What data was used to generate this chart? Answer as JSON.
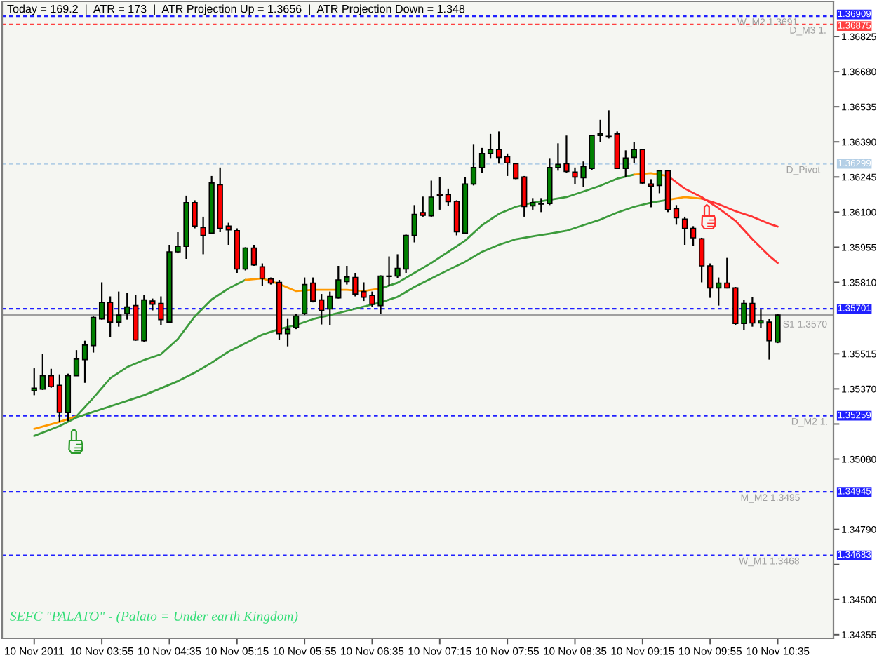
{
  "chart_data": {
    "type": "candlestick",
    "annotations": [
      "Today = 169.2  |  ATR = 173  |  ATR Projection Up = 1.3656  |  ATR Projection Down = 1.348",
      {
        "text": "W_M2 1.3691",
        "x": "2011-11-10T10:11",
        "y": 1.36909
      },
      {
        "text": "D_M3 1.",
        "x": "2011-11-10T10:42",
        "y": 1.36875
      },
      {
        "text": "D_Pivot",
        "x": "2011-11-10T10:40",
        "y": 1.36299
      },
      {
        "text": "S1 1.3570",
        "x": "2011-11-10T10:38",
        "y": 1.35701
      },
      {
        "text": "D_M2 1.",
        "x": "2011-11-10T10:43",
        "y": 1.35259
      },
      {
        "text": "M_M2 1.3495",
        "x": "2011-11-10T10:13",
        "y": 1.34945
      },
      {
        "text": "W_M1 1.3468",
        "x": "2011-11-10T10:12",
        "y": 1.34683
      },
      "SEFC \"PALATO\" - (Palato = Under earth Kingdom)"
    ],
    "x": [
      "2011-11-10T03:15",
      "2011-11-10T03:20",
      "2011-11-10T03:25",
      "2011-11-10T03:30",
      "2011-11-10T03:35",
      "2011-11-10T03:40",
      "2011-11-10T03:45",
      "2011-11-10T03:50",
      "2011-11-10T03:55",
      "2011-11-10T04:00",
      "2011-11-10T04:05",
      "2011-11-10T04:10",
      "2011-11-10T04:15",
      "2011-11-10T04:20",
      "2011-11-10T04:25",
      "2011-11-10T04:30",
      "2011-11-10T04:35",
      "2011-11-10T04:40",
      "2011-11-10T04:45",
      "2011-11-10T04:50",
      "2011-11-10T04:55",
      "2011-11-10T05:00",
      "2011-11-10T05:05",
      "2011-11-10T05:10",
      "2011-11-10T05:15",
      "2011-11-10T05:20",
      "2011-11-10T05:25",
      "2011-11-10T05:30",
      "2011-11-10T05:35",
      "2011-11-10T05:40",
      "2011-11-10T05:45",
      "2011-11-10T05:50",
      "2011-11-10T05:55",
      "2011-11-10T06:00",
      "2011-11-10T06:05",
      "2011-11-10T06:10",
      "2011-11-10T06:15",
      "2011-11-10T06:20",
      "2011-11-10T06:25",
      "2011-11-10T06:30",
      "2011-11-10T06:35",
      "2011-11-10T06:40",
      "2011-11-10T06:45",
      "2011-11-10T06:50",
      "2011-11-10T06:55",
      "2011-11-10T07:00",
      "2011-11-10T07:05",
      "2011-11-10T07:10",
      "2011-11-10T07:15",
      "2011-11-10T07:20",
      "2011-11-10T07:25",
      "2011-11-10T07:30",
      "2011-11-10T07:35",
      "2011-11-10T07:40",
      "2011-11-10T07:45",
      "2011-11-10T07:50",
      "2011-11-10T07:55",
      "2011-11-10T08:00",
      "2011-11-10T08:05",
      "2011-11-10T08:10",
      "2011-11-10T08:15",
      "2011-11-10T08:20",
      "2011-11-10T08:25",
      "2011-11-10T08:30",
      "2011-11-10T08:35",
      "2011-11-10T08:40",
      "2011-11-10T08:45",
      "2011-11-10T08:50",
      "2011-11-10T08:55",
      "2011-11-10T09:00",
      "2011-11-10T09:05",
      "2011-11-10T09:10",
      "2011-11-10T09:15",
      "2011-11-10T09:20",
      "2011-11-10T09:25",
      "2011-11-10T09:30",
      "2011-11-10T09:35",
      "2011-11-10T09:40",
      "2011-11-10T09:45",
      "2011-11-10T09:50",
      "2011-11-10T09:55",
      "2011-11-10T10:00",
      "2011-11-10T10:05",
      "2011-11-10T10:10",
      "2011-11-10T10:15",
      "2011-11-10T10:20",
      "2011-11-10T10:25",
      "2011-11-10T10:30",
      "2011-11-10T10:35"
    ],
    "ohlc": [
      [
        1.35362,
        1.35455,
        1.35344,
        1.35373
      ],
      [
        1.35369,
        1.35514,
        1.35366,
        1.35424
      ],
      [
        1.35424,
        1.35453,
        1.35375,
        1.35379
      ],
      [
        1.35385,
        1.3543,
        1.35234,
        1.35273
      ],
      [
        1.35272,
        1.35433,
        1.35237,
        1.35424
      ],
      [
        1.35424,
        1.3553,
        1.35424,
        1.35493
      ],
      [
        1.35491,
        1.35569,
        1.35395,
        1.35551
      ],
      [
        1.35549,
        1.35669,
        1.3552,
        1.35665
      ],
      [
        1.35659,
        1.3581,
        1.35656,
        1.35727
      ],
      [
        1.35727,
        1.35752,
        1.35584,
        1.35646
      ],
      [
        1.35646,
        1.35772,
        1.35627,
        1.35675
      ],
      [
        1.35681,
        1.35766,
        1.35656,
        1.35708
      ],
      [
        1.35714,
        1.35758,
        1.35569,
        1.35572
      ],
      [
        1.35569,
        1.35758,
        1.35565,
        1.35737
      ],
      [
        1.35733,
        1.35743,
        1.35694,
        1.3572
      ],
      [
        1.35723,
        1.35752,
        1.35633,
        1.35656
      ],
      [
        1.35646,
        1.35965,
        1.35642,
        1.35936
      ],
      [
        1.35936,
        1.36017,
        1.3593,
        1.35959
      ],
      [
        1.35959,
        1.36168,
        1.35907,
        1.36139
      ],
      [
        1.36139,
        1.36149,
        1.36033,
        1.36042
      ],
      [
        1.36036,
        1.36081,
        1.35926,
        1.36004
      ],
      [
        1.36013,
        1.36249,
        1.36011,
        1.3622
      ],
      [
        1.36213,
        1.36284,
        1.36017,
        1.36033
      ],
      [
        1.36042,
        1.36056,
        1.35965,
        1.36027
      ],
      [
        1.36023,
        1.36033,
        1.35849,
        1.35865
      ],
      [
        1.35865,
        1.35955,
        1.35859,
        1.35952
      ],
      [
        1.35952,
        1.35965,
        1.35878,
        1.35882
      ],
      [
        1.35874,
        1.35888,
        1.35797,
        1.35826
      ],
      [
        1.35824,
        1.3583,
        1.35801,
        1.35807
      ],
      [
        1.3581,
        1.3582,
        1.35572,
        1.35598
      ],
      [
        1.35598,
        1.35659,
        1.35546,
        1.35617
      ],
      [
        1.35623,
        1.35679,
        1.35617,
        1.35671
      ],
      [
        1.35681,
        1.3583,
        1.35675,
        1.35801
      ],
      [
        1.35807,
        1.3583,
        1.35727,
        1.35733
      ],
      [
        1.35737,
        1.35762,
        1.35636,
        1.35694
      ],
      [
        1.357,
        1.35772,
        1.35633,
        1.35752
      ],
      [
        1.35746,
        1.35878,
        1.35743,
        1.3582
      ],
      [
        1.35813,
        1.35878,
        1.35801,
        1.35832
      ],
      [
        1.3583,
        1.35849,
        1.35752,
        1.35762
      ],
      [
        1.35772,
        1.3581,
        1.35733,
        1.35749
      ],
      [
        1.35756,
        1.35772,
        1.3571,
        1.3572
      ],
      [
        1.35714,
        1.35839,
        1.35681,
        1.35836
      ],
      [
        1.35834,
        1.35917,
        1.35797,
        1.35836
      ],
      [
        1.35836,
        1.35926,
        1.35826,
        1.35868
      ],
      [
        1.35865,
        1.36007,
        1.35849,
        1.36004
      ],
      [
        1.36004,
        1.36129,
        1.35975,
        1.36091
      ],
      [
        1.36098,
        1.36164,
        1.36081,
        1.36087
      ],
      [
        1.36085,
        1.3623,
        1.36081,
        1.36162
      ],
      [
        1.36174,
        1.36245,
        1.3611,
        1.36168
      ],
      [
        1.36172,
        1.36197,
        1.36126,
        1.36143
      ],
      [
        1.36145,
        1.36149,
        1.36004,
        1.36019
      ],
      [
        1.36013,
        1.36245,
        1.3601,
        1.36216
      ],
      [
        1.36216,
        1.36381,
        1.3621,
        1.36284
      ],
      [
        1.36284,
        1.36365,
        1.36261,
        1.36342
      ],
      [
        1.36342,
        1.36423,
        1.36323,
        1.36358
      ],
      [
        1.36358,
        1.36433,
        1.363,
        1.36326
      ],
      [
        1.36329,
        1.36342,
        1.36249,
        1.36303
      ],
      [
        1.363,
        1.36303,
        1.36236,
        1.36239
      ],
      [
        1.36245,
        1.36249,
        1.36081,
        1.36123
      ],
      [
        1.36126,
        1.36158,
        1.3611,
        1.36139
      ],
      [
        1.36133,
        1.36158,
        1.361,
        1.36135
      ],
      [
        1.36135,
        1.36323,
        1.36129,
        1.36284
      ],
      [
        1.36284,
        1.36384,
        1.36271,
        1.36297
      ],
      [
        1.363,
        1.36416,
        1.36261,
        1.36268
      ],
      [
        1.36265,
        1.36284,
        1.36216,
        1.36245
      ],
      [
        1.36242,
        1.36309,
        1.36203,
        1.36288
      ],
      [
        1.3628,
        1.36419,
        1.36274,
        1.36416
      ],
      [
        1.36416,
        1.36481,
        1.3639,
        1.36423
      ],
      [
        1.3641,
        1.3652,
        1.36404,
        1.36413
      ],
      [
        1.36423,
        1.36433,
        1.36278,
        1.3628
      ],
      [
        1.3628,
        1.36355,
        1.36245,
        1.36323
      ],
      [
        1.36326,
        1.3639,
        1.36303,
        1.36358
      ],
      [
        1.36358,
        1.36361,
        1.36216,
        1.3622
      ],
      [
        1.36216,
        1.36236,
        1.3612,
        1.36207
      ],
      [
        1.3621,
        1.36274,
        1.36178,
        1.36271
      ],
      [
        1.36271,
        1.36274,
        1.361,
        1.3611
      ],
      [
        1.36114,
        1.36129,
        1.36048,
        1.36077
      ],
      [
        1.36071,
        1.36081,
        1.35965,
        1.36033
      ],
      [
        1.36033,
        1.36042,
        1.35961,
        1.35994
      ],
      [
        1.3599,
        1.35994,
        1.3581,
        1.35878
      ],
      [
        1.35878,
        1.35888,
        1.35746,
        1.35787
      ],
      [
        1.35787,
        1.3583,
        1.35714,
        1.35807
      ],
      [
        1.35807,
        1.35911,
        1.35785,
        1.35787
      ],
      [
        1.35787,
        1.35791,
        1.35633,
        1.3564
      ],
      [
        1.3564,
        1.35737,
        1.35613,
        1.35723
      ],
      [
        1.35723,
        1.35749,
        1.35627,
        1.35642
      ],
      [
        1.35642,
        1.35698,
        1.35621,
        1.35652
      ],
      [
        1.35646,
        1.35658,
        1.35491,
        1.35569
      ],
      [
        1.35563,
        1.35679,
        1.35559,
        1.35675
      ]
    ],
    "colors": [
      "#008000",
      "#008000",
      "#ff0000",
      "#ff0000",
      "#008000",
      "#008000",
      "#008000",
      "#008000",
      "#008000",
      "#ff0000",
      "#008000",
      "#008000",
      "#ff0000",
      "#008000",
      "#ff0000",
      "#ff0000",
      "#008000",
      "#008000",
      "#008000",
      "#ff0000",
      "#ff0000",
      "#008000",
      "#ff0000",
      "#ff0000",
      "#ff0000",
      "#008000",
      "#ff0000",
      "#ff0000",
      "#ff0000",
      "#ff0000",
      "#008000",
      "#008000",
      "#008000",
      "#ff0000",
      "#ff0000",
      "#008000",
      "#008000",
      "#008000",
      "#ff0000",
      "#ff0000",
      "#ff0000",
      "#008000",
      "#008000",
      "#008000",
      "#008000",
      "#008000",
      "#ff0000",
      "#008000",
      "#ff0000",
      "#ff0000",
      "#ff0000",
      "#008000",
      "#008000",
      "#008000",
      "#008000",
      "#ff0000",
      "#ff0000",
      "#ff0000",
      "#ff0000",
      "#008000",
      "#008000",
      "#008000",
      "#008000",
      "#ff0000",
      "#ff0000",
      "#008000",
      "#008000",
      "#008000",
      "#008000",
      "#ff0000",
      "#008000",
      "#008000",
      "#ff0000",
      "#ff0000",
      "#008000",
      "#ff0000",
      "#ff0000",
      "#ff0000",
      "#ff0000",
      "#ff0000",
      "#ff0000",
      "#008000",
      "#ff0000",
      "#ff0000",
      "#008000",
      "#ff0000",
      "#008000",
      "#ff0000",
      "#008000"
    ],
    "series": [
      {
        "type": "line",
        "color": "#ff9900",
        "x": [
          "2011-11-10T03:15",
          "2011-11-10T03:30",
          "2011-11-10T03:40"
        ],
        "values": [
          1.35205,
          1.35234,
          1.35257
        ]
      },
      {
        "type": "line",
        "color": "#3c9b3c",
        "x": [
          "2011-11-10T03:40",
          "2011-11-10T03:50",
          "2011-11-10T04:00",
          "2011-11-10T04:10",
          "2011-11-10T04:20",
          "2011-11-10T04:30",
          "2011-11-10T04:40",
          "2011-11-10T04:50",
          "2011-11-10T05:00",
          "2011-11-10T05:10",
          "2011-11-10T05:20"
        ],
        "values": [
          1.35257,
          1.35333,
          1.35414,
          1.3546,
          1.35489,
          1.35513,
          1.35576,
          1.35669,
          1.35739,
          1.35785,
          1.3582
        ]
      },
      {
        "type": "line",
        "color": "#ff9900",
        "x": [
          "2011-11-10T05:20",
          "2011-11-10T05:30",
          "2011-11-10T05:40",
          "2011-11-10T05:50",
          "2011-11-10T06:00",
          "2011-11-10T06:10",
          "2011-11-10T06:20",
          "2011-11-10T06:30",
          "2011-11-10T06:40"
        ],
        "values": [
          1.3582,
          1.35826,
          1.35803,
          1.35774,
          1.35779,
          1.35779,
          1.35779,
          1.35774,
          1.35785
        ]
      },
      {
        "type": "line",
        "color": "#3c9b3c",
        "x": [
          "2011-11-10T06:40",
          "2011-11-10T06:50",
          "2011-11-10T07:00",
          "2011-11-10T07:10",
          "2011-11-10T07:20",
          "2011-11-10T07:30",
          "2011-11-10T07:40",
          "2011-11-10T07:50",
          "2011-11-10T08:00",
          "2011-11-10T08:10",
          "2011-11-10T08:20",
          "2011-11-10T08:30",
          "2011-11-10T08:40",
          "2011-11-10T08:50",
          "2011-11-10T09:00",
          "2011-11-10T09:10"
        ],
        "values": [
          1.35785,
          1.35808,
          1.35849,
          1.3589,
          1.35936,
          1.35982,
          1.36046,
          1.36093,
          1.36122,
          1.36139,
          1.36151,
          1.36162,
          1.36185,
          1.36209,
          1.36238,
          1.36255
        ]
      },
      {
        "type": "line",
        "color": "#ff9900",
        "x": [
          "2011-11-10T09:10",
          "2011-11-10T09:20",
          "2011-11-10T09:30"
        ],
        "values": [
          1.36255,
          1.36261,
          1.36249
        ]
      },
      {
        "type": "line",
        "color": "#ff3333",
        "x": [
          "2011-11-10T09:30",
          "2011-11-10T09:40",
          "2011-11-10T09:50",
          "2011-11-10T10:00",
          "2011-11-10T10:10",
          "2011-11-10T10:20",
          "2011-11-10T10:30",
          "2011-11-10T10:35"
        ],
        "values": [
          1.36249,
          1.36197,
          1.36162,
          1.36116,
          1.36064,
          1.35988,
          1.35919,
          1.3589
        ]
      },
      {
        "type": "line",
        "color": "#3c9b3c",
        "x": [
          "2011-11-10T03:15",
          "2011-11-10T03:30",
          "2011-11-10T03:40",
          "2011-11-10T03:50",
          "2011-11-10T04:00",
          "2011-11-10T04:10",
          "2011-11-10T04:20",
          "2011-11-10T04:30",
          "2011-11-10T04:40",
          "2011-11-10T04:50",
          "2011-11-10T05:00",
          "2011-11-10T05:10",
          "2011-11-10T05:20",
          "2011-11-10T05:30",
          "2011-11-10T05:40",
          "2011-11-10T05:50",
          "2011-11-10T06:00",
          "2011-11-10T06:10",
          "2011-11-10T06:20",
          "2011-11-10T06:30",
          "2011-11-10T06:40",
          "2011-11-10T06:50",
          "2011-11-10T07:00",
          "2011-11-10T07:10",
          "2011-11-10T07:20",
          "2011-11-10T07:30",
          "2011-11-10T07:40",
          "2011-11-10T07:50",
          "2011-11-10T08:00",
          "2011-11-10T08:10",
          "2011-11-10T08:20",
          "2011-11-10T08:30",
          "2011-11-10T08:40",
          "2011-11-10T08:50",
          "2011-11-10T09:00",
          "2011-11-10T09:10",
          "2011-11-10T09:20",
          "2011-11-10T09:30"
        ],
        "values": [
          1.35176,
          1.35217,
          1.35252,
          1.35275,
          1.35298,
          1.35321,
          1.35344,
          1.35373,
          1.35402,
          1.35437,
          1.35478,
          1.35524,
          1.35559,
          1.35594,
          1.35617,
          1.35634,
          1.35658,
          1.35675,
          1.35692,
          1.3571,
          1.35727,
          1.3575,
          1.35791,
          1.35826,
          1.35861,
          1.35895,
          1.35936,
          1.35965,
          1.35988,
          1.36,
          1.36011,
          1.36023,
          1.36046,
          1.36069,
          1.36098,
          1.36122,
          1.36139,
          1.36151
        ]
      },
      {
        "type": "line",
        "color": "#ff9900",
        "x": [
          "2011-11-10T09:30",
          "2011-11-10T09:40",
          "2011-11-10T09:50"
        ],
        "values": [
          1.36151,
          1.36162,
          1.36156
        ]
      },
      {
        "type": "line",
        "color": "#ff3333",
        "x": [
          "2011-11-10T09:50",
          "2011-11-10T10:00",
          "2011-11-10T10:10",
          "2011-11-10T10:20",
          "2011-11-10T10:30",
          "2011-11-10T10:35"
        ],
        "values": [
          1.36156,
          1.36133,
          1.36104,
          1.36081,
          1.36052,
          1.3604
        ]
      }
    ],
    "ref_lines": [
      {
        "axis": "y",
        "value": 1.36909,
        "label": "1.36909",
        "color": "#2020ff",
        "line_style": "dashed"
      },
      {
        "axis": "y",
        "value": 1.36875,
        "label": "1.36875",
        "color": "#ff4040",
        "line_style": "dashed"
      },
      {
        "axis": "y",
        "value": 1.36299,
        "label": "1.36299",
        "color": "#b4cfe6",
        "line_style": "dashed"
      },
      {
        "axis": "y",
        "value": 1.35675,
        "color": "#a0a0a0",
        "line_style": "solid"
      },
      {
        "axis": "y",
        "value": 1.35701,
        "label": "1.35701",
        "color": "#2020ff",
        "line_style": "dashed"
      },
      {
        "axis": "y",
        "value": 1.35259,
        "label": "1.35259",
        "color": "#2020ff",
        "line_style": "dashed"
      },
      {
        "axis": "y",
        "value": 1.34945,
        "label": "1.34945",
        "color": "#2020ff",
        "line_style": "dashed"
      },
      {
        "axis": "y",
        "value": 1.34683,
        "label": "1.34683",
        "color": "#2020ff",
        "line_style": "dashed"
      }
    ],
    "xlim": [
      "2011-11-10T02:56",
      "2011-11-10T11:08"
    ],
    "xticks": [
      {
        "value": "2011-11-10T03:15",
        "label": "10 Nov 2011"
      },
      {
        "value": "2011-11-10T03:55",
        "label": "10 Nov 03:55"
      },
      {
        "value": "2011-11-10T04:35",
        "label": "10 Nov 04:35"
      },
      {
        "value": "2011-11-10T05:15",
        "label": "10 Nov 05:15"
      },
      {
        "value": "2011-11-10T05:55",
        "label": "10 Nov 05:55"
      },
      {
        "value": "2011-11-10T06:35",
        "label": "10 Nov 06:35"
      },
      {
        "value": "2011-11-10T07:15",
        "label": "10 Nov 07:15"
      },
      {
        "value": "2011-11-10T07:55",
        "label": "10 Nov 07:55"
      },
      {
        "value": "2011-11-10T08:35",
        "label": "10 Nov 08:35"
      },
      {
        "value": "2011-11-10T09:15",
        "label": "10 Nov 09:15"
      },
      {
        "value": "2011-11-10T09:55",
        "label": "10 Nov 09:55"
      },
      {
        "value": "2011-11-10T10:35",
        "label": "10 Nov 10:35"
      }
    ],
    "ylim": [
      1.3434,
      1.3697
    ],
    "yticks": [
      1.36825,
      {
        "value": 1.3668,
        "label": "1.36680"
      },
      1.36535,
      {
        "value": 1.3639,
        "label": "1.36390"
      },
      1.36245,
      {
        "value": 1.361,
        "label": "1.36100"
      },
      1.35955,
      {
        "value": 1.3581,
        "label": "1.35810"
      },
      1.35515,
      {
        "value": 1.3537,
        "label": "1.35370"
      },
      {
        "value": 1.35225,
        "label": null
      },
      {
        "value": 1.3508,
        "label": "1.35080"
      },
      {
        "value": 1.3479,
        "label": "1.34790"
      },
      {
        "value": 1.34645,
        "label": null
      },
      {
        "value": 1.345,
        "label": "1.34500"
      },
      1.34355
    ]
  }
}
